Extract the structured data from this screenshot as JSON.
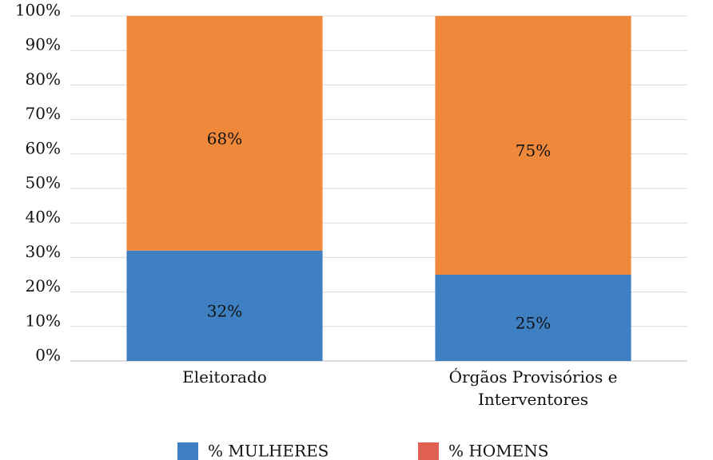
{
  "chart_data": {
    "type": "bar",
    "stacked": true,
    "categories": [
      "Eleitorado",
      "Órgãos Provisórios e Interventores"
    ],
    "series": [
      {
        "name": "% MULHERES",
        "color": "#3e80c2",
        "legend_color": "#3e80c2",
        "values": [
          32,
          25
        ],
        "value_labels": [
          "32%",
          "25%"
        ]
      },
      {
        "name": "% HOMENS",
        "color": "#ef883b",
        "legend_color": "#e0614f",
        "values": [
          68,
          75
        ],
        "value_labels": [
          "68%",
          "75%"
        ]
      }
    ],
    "ylim": [
      0,
      100
    ],
    "yticks": [
      {
        "value": 0,
        "label": "0%"
      },
      {
        "value": 10,
        "label": "10%"
      },
      {
        "value": 20,
        "label": "20%"
      },
      {
        "value": 30,
        "label": "30%"
      },
      {
        "value": 40,
        "label": "40%"
      },
      {
        "value": 50,
        "label": "50%"
      },
      {
        "value": 60,
        "label": "60%"
      },
      {
        "value": 70,
        "label": "70%"
      },
      {
        "value": 80,
        "label": "80%"
      },
      {
        "value": 90,
        "label": "90%"
      },
      {
        "value": 100,
        "label": "100%"
      }
    ],
    "grid": true,
    "legend": "bottom"
  }
}
